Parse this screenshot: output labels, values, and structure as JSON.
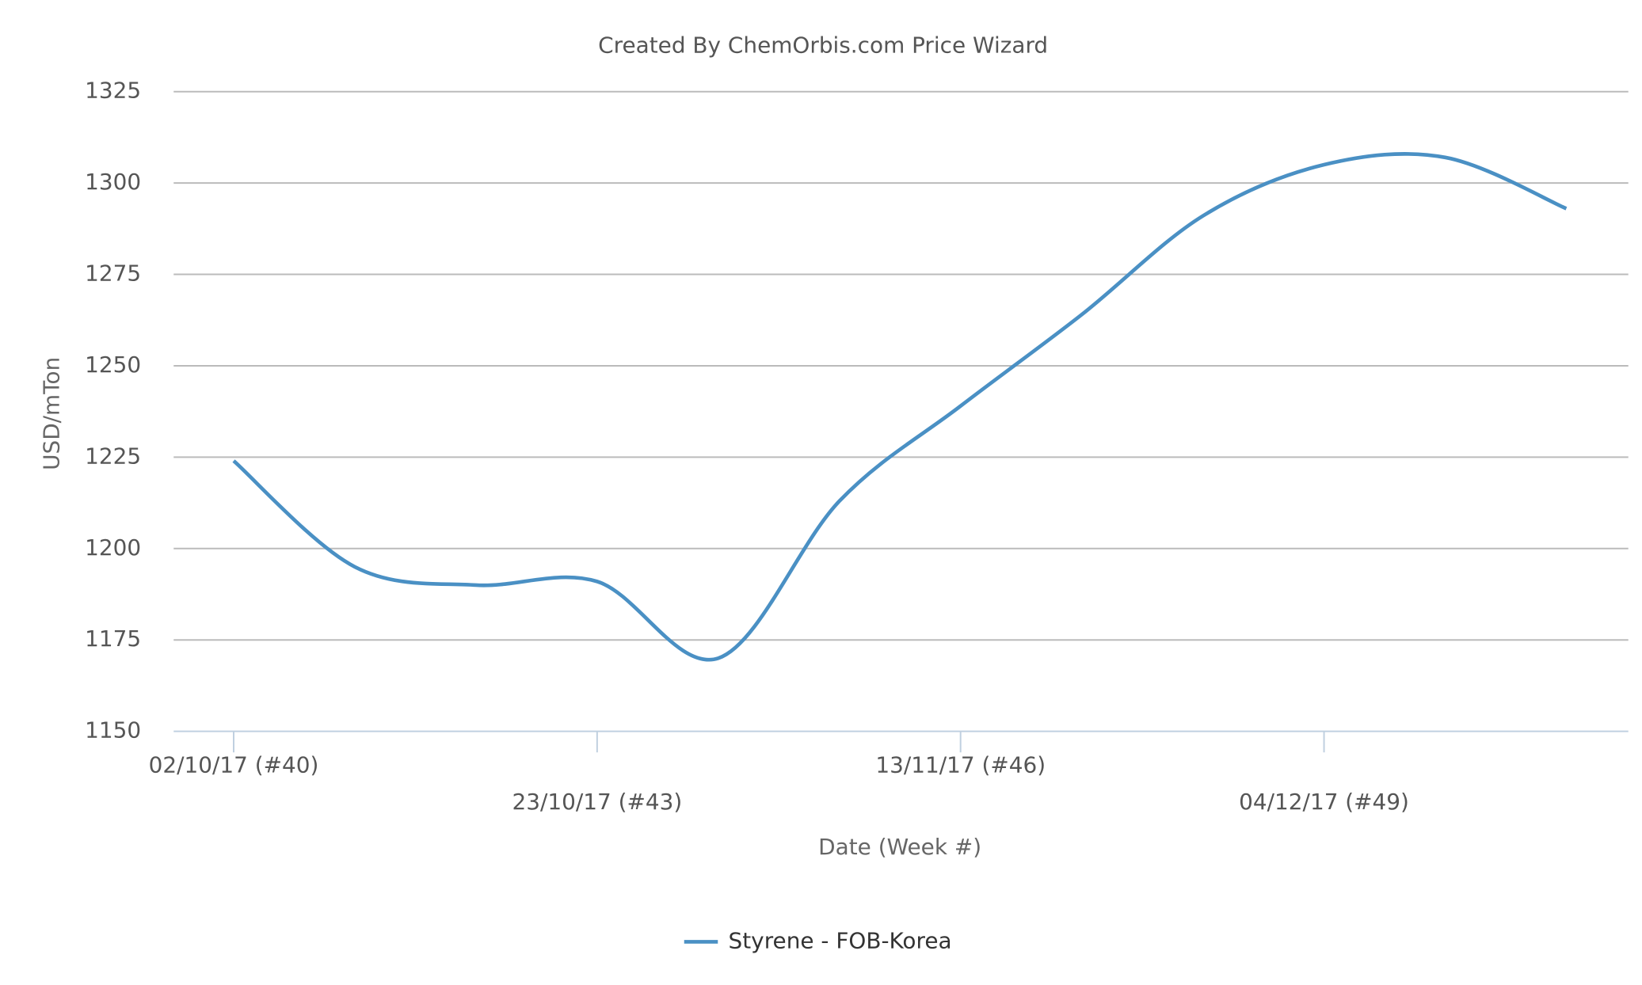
{
  "chart_data": {
    "type": "line",
    "title": "Created By ChemOrbis.com Price Wizard",
    "x_label": "Date (Week #)",
    "y_label": "USD/mTon",
    "categories": [
      "02/10/17 (#40)",
      null,
      null,
      "23/10/17 (#43)",
      null,
      null,
      "13/11/17 (#46)",
      null,
      null,
      "04/12/17 (#49)",
      null,
      null
    ],
    "series": [
      {
        "name": "Styrene - FOB-Korea",
        "color": "#4a90c4",
        "values": [
          1224,
          1195,
          1190,
          1191,
          1170,
          1213,
          1239,
          1264,
          1291,
          1305,
          1307,
          1293
        ]
      }
    ],
    "ylim": [
      1150,
      1325
    ],
    "yticks": [
      1150,
      1175,
      1200,
      1225,
      1250,
      1275,
      1300,
      1325
    ],
    "grid": true
  }
}
